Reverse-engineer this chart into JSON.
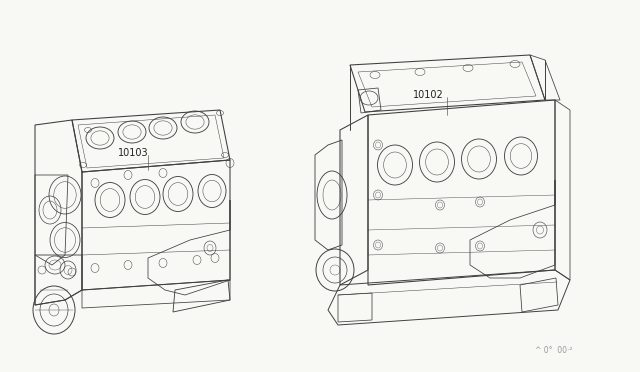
{
  "background_color": "#ffffff",
  "fig_width": 6.4,
  "fig_height": 3.72,
  "dpi": 100,
  "label_10103": "10103",
  "label_10102": "10102",
  "watermark_text": "^ 0°  00·²",
  "line_color": "#404040",
  "line_width": 0.7,
  "annotation_color": "#222222",
  "bg_color": "#f8f8f5"
}
